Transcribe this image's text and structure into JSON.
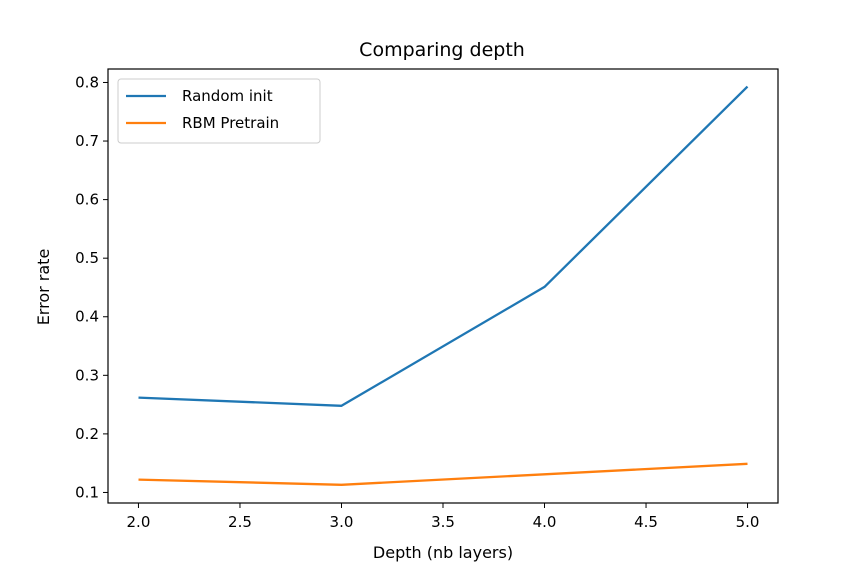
{
  "chart_data": {
    "type": "line",
    "title": "Comparing depth",
    "xlabel": "Depth (nb layers)",
    "ylabel": "Error rate",
    "xlim": [
      1.85,
      5.15
    ],
    "ylim": [
      0.082,
      0.823
    ],
    "xticks": [
      2.0,
      2.5,
      3.0,
      3.5,
      4.0,
      4.5,
      5.0
    ],
    "xtick_labels": [
      "2.0",
      "2.5",
      "3.0",
      "3.5",
      "4.0",
      "4.5",
      "5.0"
    ],
    "yticks": [
      0.1,
      0.2,
      0.3,
      0.4,
      0.5,
      0.6,
      0.7,
      0.8
    ],
    "ytick_labels": [
      "0.1",
      "0.2",
      "0.3",
      "0.4",
      "0.5",
      "0.6",
      "0.7",
      "0.8"
    ],
    "x": [
      2,
      3,
      4,
      5
    ],
    "series": [
      {
        "name": "Random init",
        "color": "#1f77b4",
        "values": [
          0.262,
          0.248,
          0.451,
          0.793
        ]
      },
      {
        "name": "RBM Pretrain",
        "color": "#ff7f0e",
        "values": [
          0.122,
          0.113,
          0.131,
          0.149
        ]
      }
    ],
    "legend": "upper-left",
    "grid": false
  }
}
